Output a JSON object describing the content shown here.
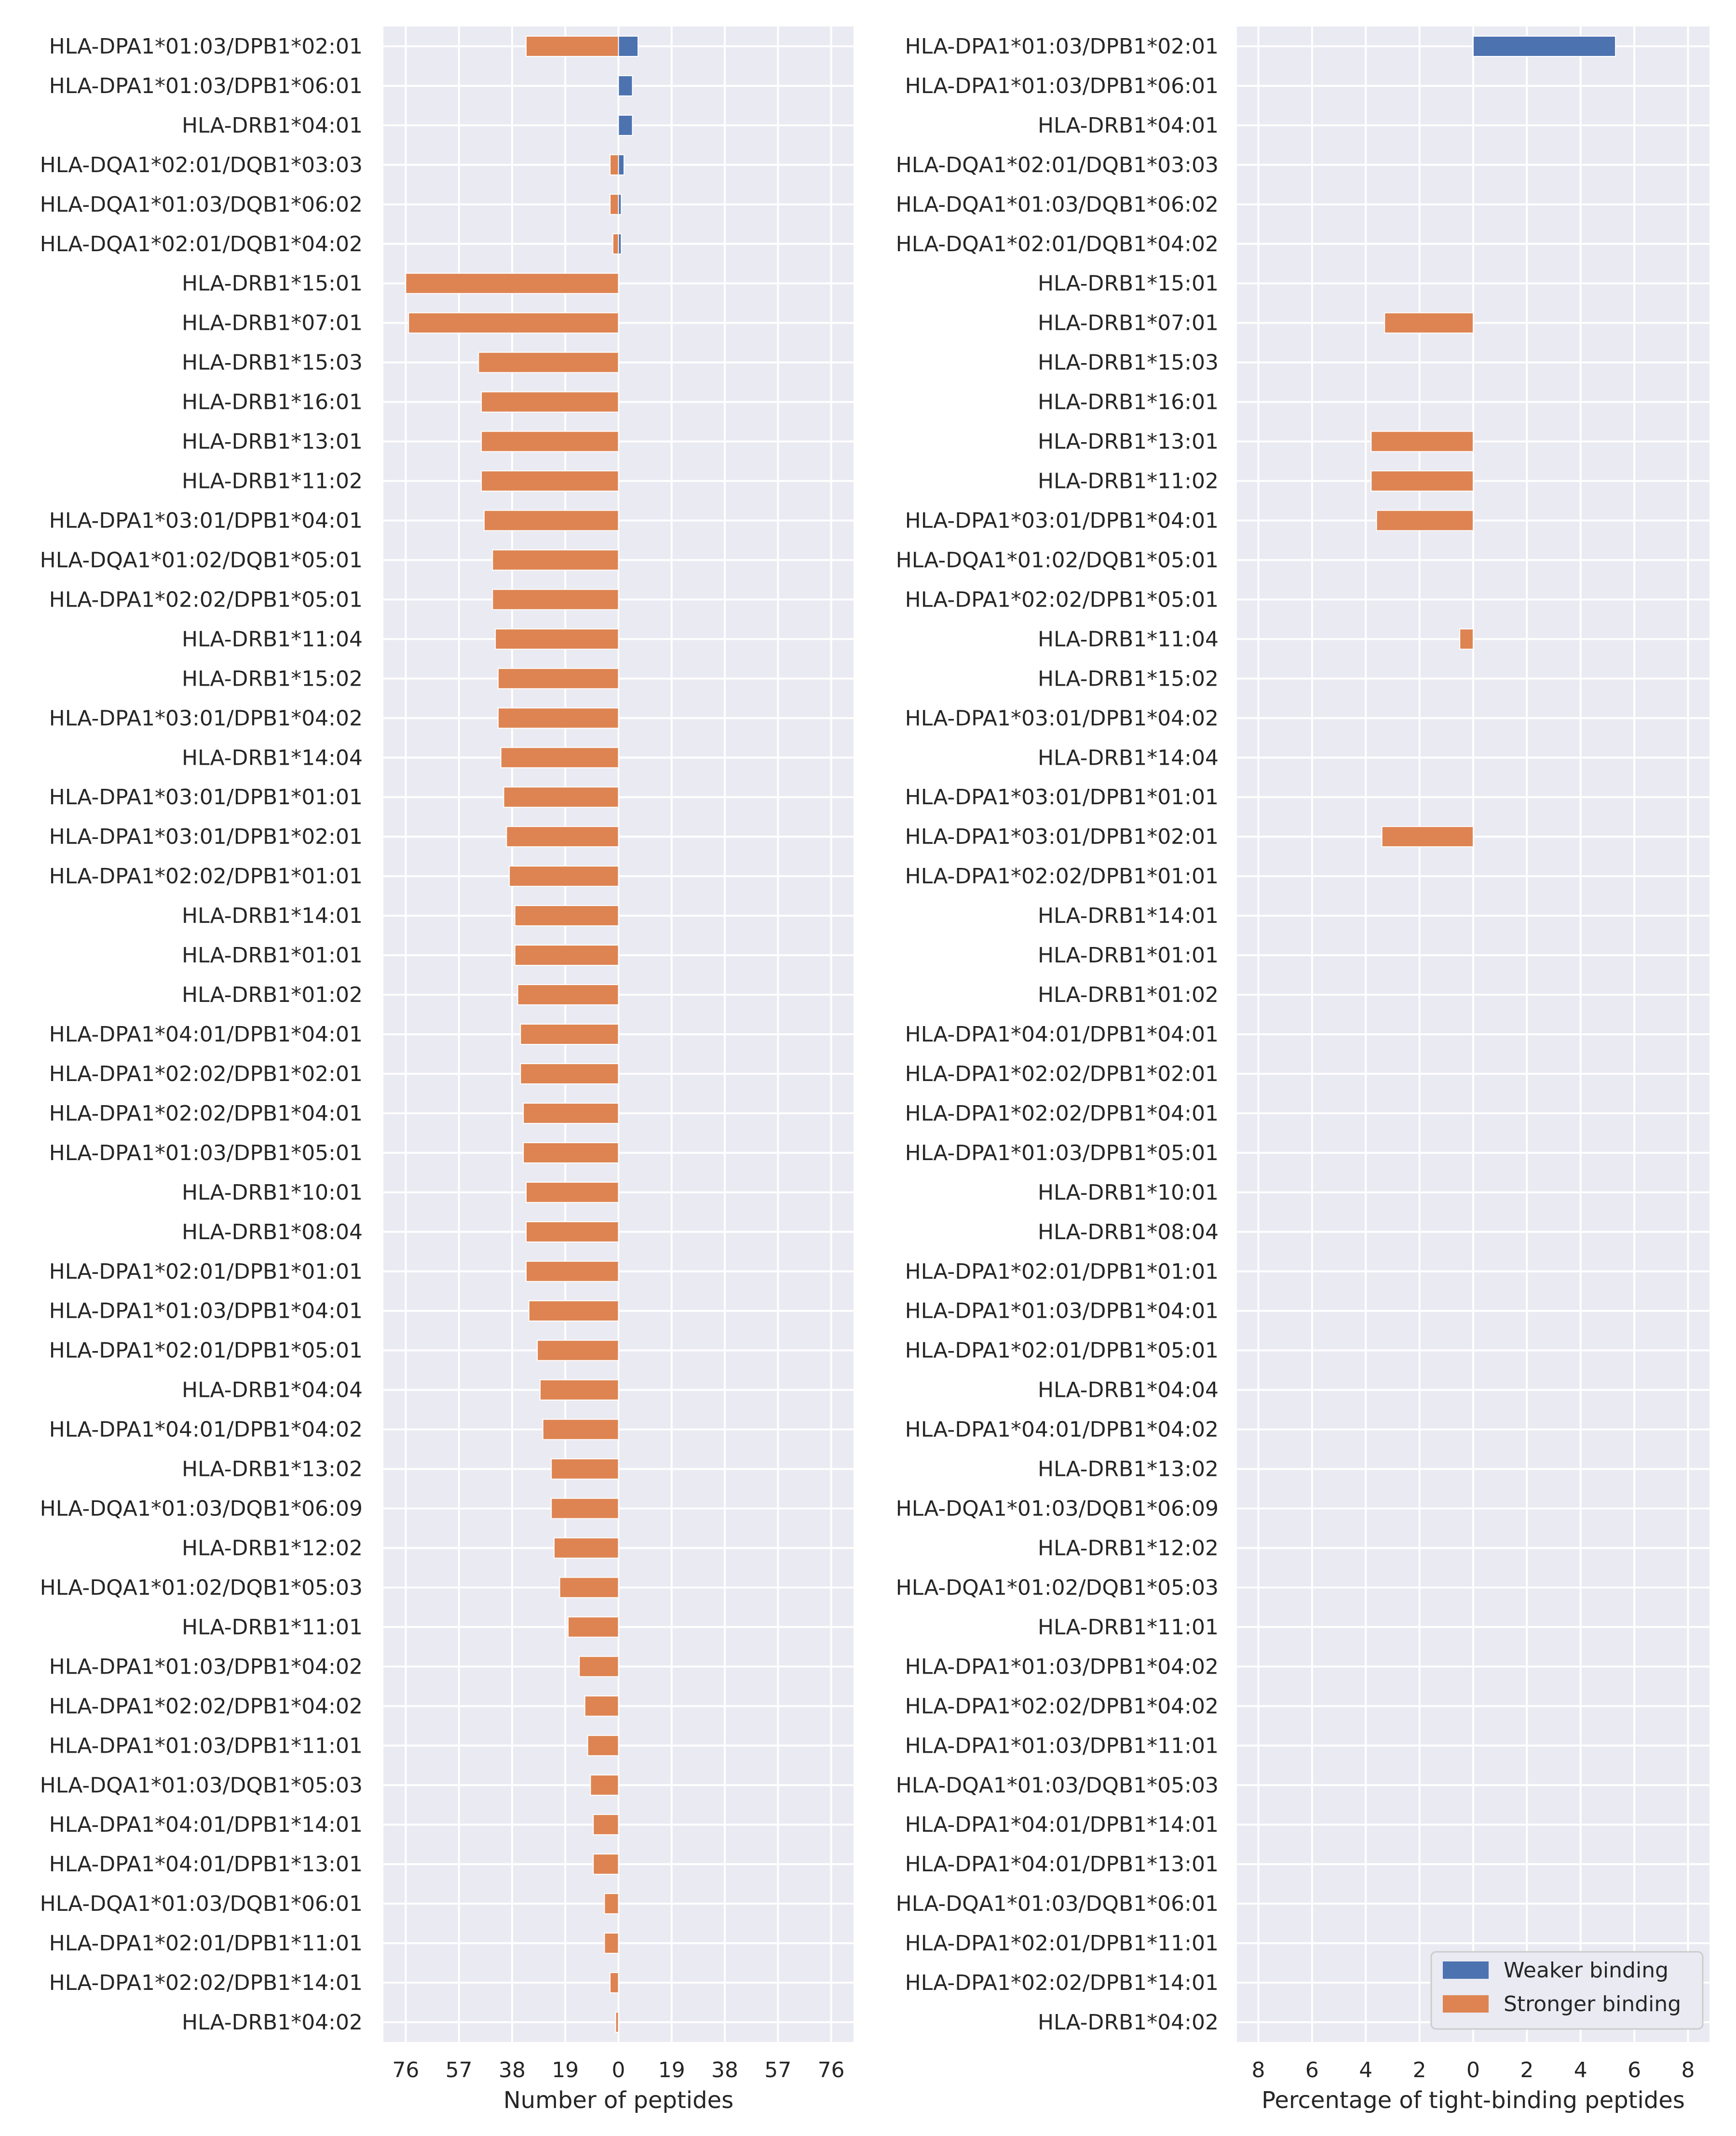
{
  "chart_data": [
    {
      "type": "bar",
      "orientation": "horizontal-diverging",
      "xlabel": "Number of peptides",
      "ylabel": "",
      "xlim": [
        -84,
        84
      ],
      "x_tick_labels": [
        "76",
        "57",
        "38",
        "19",
        "0",
        "19",
        "38",
        "57",
        "76"
      ],
      "x_tick_values": [
        -76,
        -57,
        -38,
        -19,
        0,
        19,
        38,
        57,
        76
      ],
      "grid": true,
      "categories": [
        "HLA-DPA1*01:03/DPB1*02:01",
        "HLA-DPA1*01:03/DPB1*06:01",
        "HLA-DRB1*04:01",
        "HLA-DQA1*02:01/DQB1*03:03",
        "HLA-DQA1*01:03/DQB1*06:02",
        "HLA-DQA1*02:01/DQB1*04:02",
        "HLA-DRB1*15:01",
        "HLA-DRB1*07:01",
        "HLA-DRB1*15:03",
        "HLA-DRB1*16:01",
        "HLA-DRB1*13:01",
        "HLA-DRB1*11:02",
        "HLA-DPA1*03:01/DPB1*04:01",
        "HLA-DQA1*01:02/DQB1*05:01",
        "HLA-DPA1*02:02/DPB1*05:01",
        "HLA-DRB1*11:04",
        "HLA-DRB1*15:02",
        "HLA-DPA1*03:01/DPB1*04:02",
        "HLA-DRB1*14:04",
        "HLA-DPA1*03:01/DPB1*01:01",
        "HLA-DPA1*03:01/DPB1*02:01",
        "HLA-DPA1*02:02/DPB1*01:01",
        "HLA-DRB1*14:01",
        "HLA-DRB1*01:01",
        "HLA-DRB1*01:02",
        "HLA-DPA1*04:01/DPB1*04:01",
        "HLA-DPA1*02:02/DPB1*02:01",
        "HLA-DPA1*02:02/DPB1*04:01",
        "HLA-DPA1*01:03/DPB1*05:01",
        "HLA-DRB1*10:01",
        "HLA-DRB1*08:04",
        "HLA-DPA1*02:01/DPB1*01:01",
        "HLA-DPA1*01:03/DPB1*04:01",
        "HLA-DPA1*02:01/DPB1*05:01",
        "HLA-DRB1*04:04",
        "HLA-DPA1*04:01/DPB1*04:02",
        "HLA-DRB1*13:02",
        "HLA-DQA1*01:03/DQB1*06:09",
        "HLA-DRB1*12:02",
        "HLA-DQA1*01:02/DQB1*05:03",
        "HLA-DRB1*11:01",
        "HLA-DPA1*01:03/DPB1*04:02",
        "HLA-DPA1*02:02/DPB1*04:02",
        "HLA-DPA1*01:03/DPB1*11:01",
        "HLA-DQA1*01:03/DQB1*05:03",
        "HLA-DPA1*04:01/DPB1*14:01",
        "HLA-DPA1*04:01/DPB1*13:01",
        "HLA-DQA1*01:03/DQB1*06:01",
        "HLA-DPA1*02:01/DPB1*11:01",
        "HLA-DPA1*02:02/DPB1*14:01",
        "HLA-DRB1*04:02"
      ],
      "series": [
        {
          "name": "Weaker binding",
          "color": "#4c72b0",
          "values": [
            7,
            5,
            5,
            2,
            1,
            1,
            0,
            0,
            0,
            0,
            0,
            0,
            0,
            0,
            0,
            0,
            0,
            0,
            0,
            0,
            0,
            0,
            0,
            0,
            0,
            0,
            0,
            0,
            0,
            0,
            0,
            0,
            0,
            0,
            0,
            0,
            0,
            0,
            0,
            0,
            0,
            0,
            0,
            0,
            0,
            0,
            0,
            0,
            0,
            0,
            0
          ]
        },
        {
          "name": "Stronger binding",
          "color": "#dd8452",
          "values": [
            33,
            0,
            0,
            3,
            3,
            2,
            76,
            75,
            50,
            49,
            49,
            49,
            48,
            45,
            45,
            44,
            43,
            43,
            42,
            41,
            40,
            39,
            37,
            37,
            36,
            35,
            35,
            34,
            34,
            33,
            33,
            33,
            32,
            29,
            28,
            27,
            24,
            24,
            23,
            21,
            18,
            14,
            12,
            11,
            10,
            9,
            9,
            5,
            5,
            3,
            1
          ]
        }
      ]
    },
    {
      "type": "bar",
      "orientation": "horizontal-diverging",
      "xlabel": "Percentage of tight-binding peptides",
      "ylabel": "",
      "xlim": [
        -8.8,
        8.8
      ],
      "x_tick_labels": [
        "8",
        "6",
        "4",
        "2",
        "0",
        "2",
        "4",
        "6",
        "8"
      ],
      "x_tick_values": [
        -8,
        -6,
        -4,
        -2,
        0,
        2,
        4,
        6,
        8
      ],
      "grid": true,
      "legend_position": "bottom-right",
      "categories_same_as_left": true,
      "series": [
        {
          "name": "Weaker binding",
          "color": "#4c72b0",
          "values": [
            5.3,
            0,
            0,
            0,
            0,
            0,
            0,
            0,
            0,
            0,
            0,
            0,
            0,
            0,
            0,
            0,
            0,
            0,
            0,
            0,
            0,
            0,
            0,
            0,
            0,
            0,
            0,
            0,
            0,
            0,
            0,
            0,
            0,
            0,
            0,
            0,
            0,
            0,
            0,
            0,
            0,
            0,
            0,
            0,
            0,
            0,
            0,
            0,
            0,
            0,
            0
          ]
        },
        {
          "name": "Stronger binding",
          "color": "#dd8452",
          "values": [
            0,
            0,
            0,
            0,
            0,
            0,
            0,
            3.3,
            0,
            0,
            3.8,
            3.8,
            3.6,
            0,
            0,
            0.5,
            0,
            0,
            0,
            0,
            3.4,
            0,
            0,
            0,
            0,
            0,
            0,
            0,
            0,
            0,
            0,
            0,
            0,
            0,
            0,
            0,
            0,
            0,
            0,
            0,
            0,
            0,
            0,
            0,
            0,
            0,
            0,
            0,
            0,
            0,
            0
          ]
        }
      ]
    }
  ]
}
